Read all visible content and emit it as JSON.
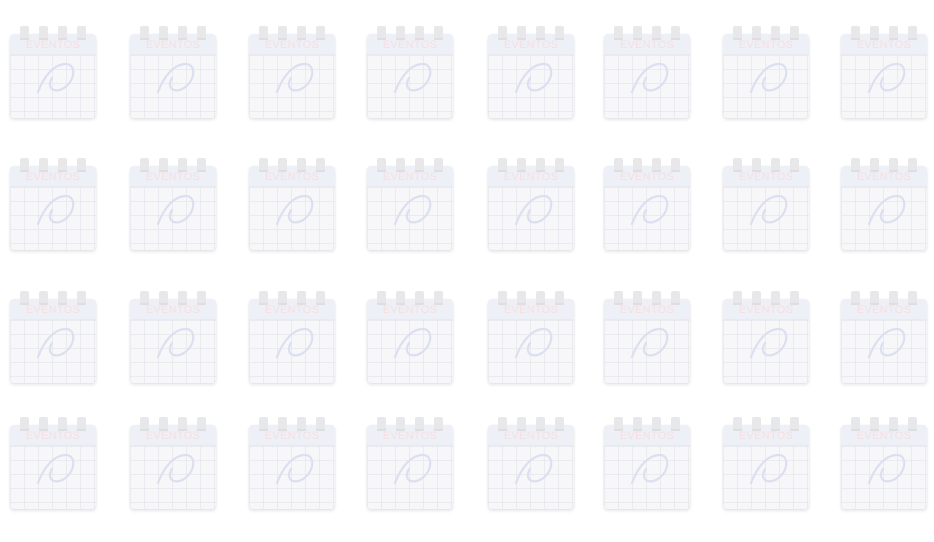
{
  "pattern": {
    "icon": "calendar-icon",
    "label": "EVENTOS",
    "rows": 4,
    "cols": 8,
    "colors": {
      "background": "#ffffff",
      "card": "#f7f7f9",
      "header": "#eef0f8",
      "label": "#f7dede",
      "swirl": "#dcdff0"
    }
  }
}
